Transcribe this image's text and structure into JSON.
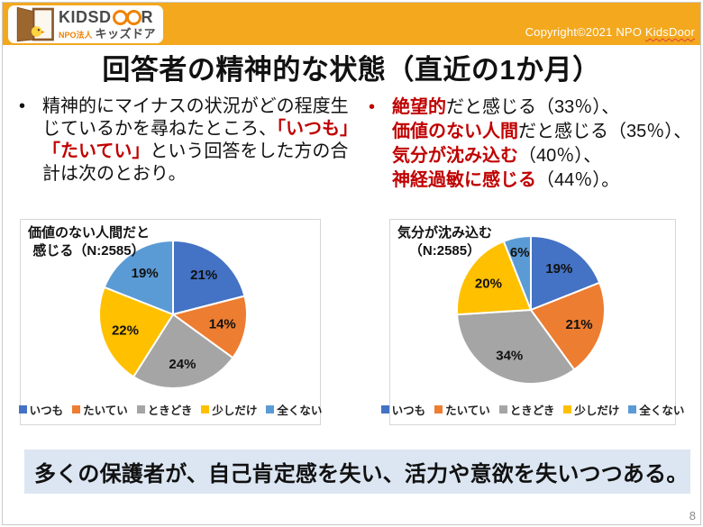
{
  "header": {
    "logo": {
      "brand_start": "KIDSD",
      "brand_end": "R",
      "sub_prefix": "NPO法人",
      "sub_name": "キッズドア"
    },
    "copyright_prefix": "Copyright©2021 NPO ",
    "copyright_link": "KidsDoor"
  },
  "title": "回答者の精神的な状態（直近の1か月）",
  "bullets": {
    "left": {
      "marker": "•",
      "segments": [
        {
          "text": "精神的にマイナスの状況がどの程度生じているかを尋ねたところ、"
        },
        {
          "text": "「いつも」「たいてい」"
        },
        {
          "text": "という回答をした方の合計は次のとおり。"
        }
      ]
    },
    "right": {
      "marker": "•",
      "lines": [
        [
          {
            "text": "絶望的"
          },
          {
            "text": "だと感じる（33％）、"
          }
        ],
        [
          {
            "text": "価値のない人間"
          },
          {
            "text": "だと感じる（35％）、"
          }
        ],
        [
          {
            "text": "気分が沈み込む"
          },
          {
            "text": "（40％）、"
          }
        ],
        [
          {
            "text": "神経過敏に感じる"
          },
          {
            "text": "（44％）。"
          }
        ]
      ]
    }
  },
  "chart_data": [
    {
      "type": "pie",
      "title": "価値のない人間だと感じる（N:2585）",
      "title_lines": [
        "価値のない人間だと",
        "感じる（N:2585）"
      ],
      "n": 2585,
      "categories": [
        "いつも",
        "たいてい",
        "ときどき",
        "少しだけ",
        "全くない"
      ],
      "values": [
        21,
        14,
        24,
        22,
        19
      ],
      "labels": [
        "21%",
        "14%",
        "24%",
        "22%",
        "19%"
      ],
      "colors": [
        "#4472C4",
        "#ED7D31",
        "#A5A5A5",
        "#FFC000",
        "#5B9BD5"
      ],
      "legend_position": "bottom",
      "start_angle_deg": 0,
      "direction": "clockwise"
    },
    {
      "type": "pie",
      "title": "気分が沈み込む（N:2585）",
      "title_lines": [
        "気分が沈み込む",
        "（N:2585）"
      ],
      "n": 2585,
      "categories": [
        "いつも",
        "たいてい",
        "ときどき",
        "少しだけ",
        "全くない"
      ],
      "values": [
        19,
        21,
        34,
        20,
        6
      ],
      "labels": [
        "19%",
        "21%",
        "34%",
        "20%",
        "6%"
      ],
      "colors": [
        "#4472C4",
        "#ED7D31",
        "#A5A5A5",
        "#FFC000",
        "#5B9BD5"
      ],
      "legend_position": "bottom",
      "start_angle_deg": 0,
      "direction": "clockwise"
    }
  ],
  "banner": {
    "text": "多くの保護者が、自己肯定感を失い、活力や意欲を失いつつある。"
  },
  "page_number": "8",
  "colors": {
    "header_bg": "#F3A81E",
    "accent_red": "#C00000",
    "banner_bg": "#DCE6F2",
    "logo_orange": "#F08300",
    "slice_blue": "#4472C4",
    "slice_orange": "#ED7D31",
    "slice_gray": "#A5A5A5",
    "slice_yellow": "#FFC000",
    "slice_lightblue": "#5B9BD5"
  }
}
